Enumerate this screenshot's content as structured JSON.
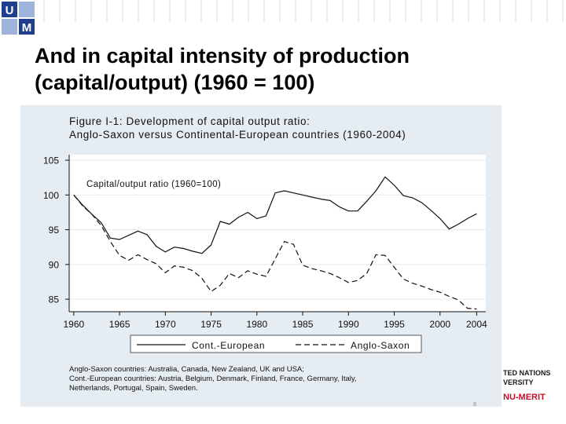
{
  "slide": {
    "title_line1": "And in capital intensity of production",
    "title_line2": "(capital/output) (1960 = 100)",
    "page_number": "9"
  },
  "branding": {
    "logo_letters_top": "U",
    "logo_letters_bottom": "M",
    "un_line1": "TED NATIONS",
    "un_line2": "VERSITY",
    "merit_text": "NU-MERIT"
  },
  "chart_data": {
    "type": "line",
    "title_line1": "Figure I-1: Development of capital output ratio:",
    "title_line2": "Anglo-Saxon versus Continental-European countries (1960-2004)",
    "annotation": "Capital/output ratio (1960=100)",
    "xlim": [
      1959.5,
      2005
    ],
    "ylim": [
      83.2,
      105.8
    ],
    "x_ticks": [
      "1960",
      "1965",
      "1970",
      "1975",
      "1980",
      "1985",
      "1990",
      "1995",
      "2000",
      "2004"
    ],
    "y_ticks": [
      "105",
      "100",
      "95",
      "90",
      "85"
    ],
    "grid": "horizontal",
    "legend": "bottom",
    "note_line1": "Anglo-Saxon countries: Australia, Canada, New Zealand, UK and USA;",
    "note_line2": "Cont.-European countries: Austria, Belgium, Denmark, Finland, France, Germany, Italy,",
    "note_line3": "Netherlands, Portugal, Spain, Sweden.",
    "x": [
      1960,
      1961,
      1962,
      1963,
      1964,
      1965,
      1966,
      1967,
      1968,
      1969,
      1970,
      1971,
      1972,
      1973,
      1974,
      1975,
      1976,
      1977,
      1978,
      1979,
      1980,
      1981,
      1982,
      1983,
      1984,
      1985,
      1986,
      1987,
      1988,
      1989,
      1990,
      1991,
      1992,
      1993,
      1994,
      1995,
      1996,
      1997,
      1998,
      1999,
      2000,
      2001,
      2002,
      2003,
      2004
    ],
    "series": [
      {
        "name": "Cont.-European",
        "style": "solid",
        "values": [
          100,
          98.5,
          97.2,
          96,
          93.8,
          93.6,
          94.2,
          94.8,
          94.3,
          92.6,
          91.8,
          92.5,
          92.3,
          91.9,
          91.6,
          92.8,
          96.2,
          95.8,
          96.8,
          97.5,
          96.6,
          97,
          100.3,
          100.6,
          100.3,
          100,
          99.7,
          99.4,
          99.2,
          98.3,
          97.7,
          97.7,
          99.1,
          100.6,
          102.6,
          101.4,
          99.9,
          99.6,
          98.9,
          97.8,
          96.6,
          95.1,
          95.8,
          96.6,
          97.3
        ]
      },
      {
        "name": "Anglo-Saxon",
        "style": "dashed",
        "values": [
          100,
          98.4,
          97.2,
          95.6,
          93.3,
          91.3,
          90.6,
          91.4,
          90.7,
          90.1,
          88.8,
          89.8,
          89.6,
          89.1,
          88,
          86.1,
          87,
          88.7,
          88.1,
          89.1,
          88.6,
          88.3,
          90.8,
          93.3,
          92.9,
          89.9,
          89.4,
          89.1,
          88.7,
          88.1,
          87.4,
          87.7,
          88.7,
          91.4,
          91.3,
          89.6,
          87.9,
          87.3,
          86.9,
          86.4,
          86,
          85.4,
          84.9,
          83.7,
          83.6
        ]
      }
    ]
  },
  "colors": {
    "panel_background": "#e5edf2",
    "plot_background": "#ffffff",
    "gridline": "#e5edf2",
    "line": "#111111",
    "title_red": "#c8102e"
  }
}
